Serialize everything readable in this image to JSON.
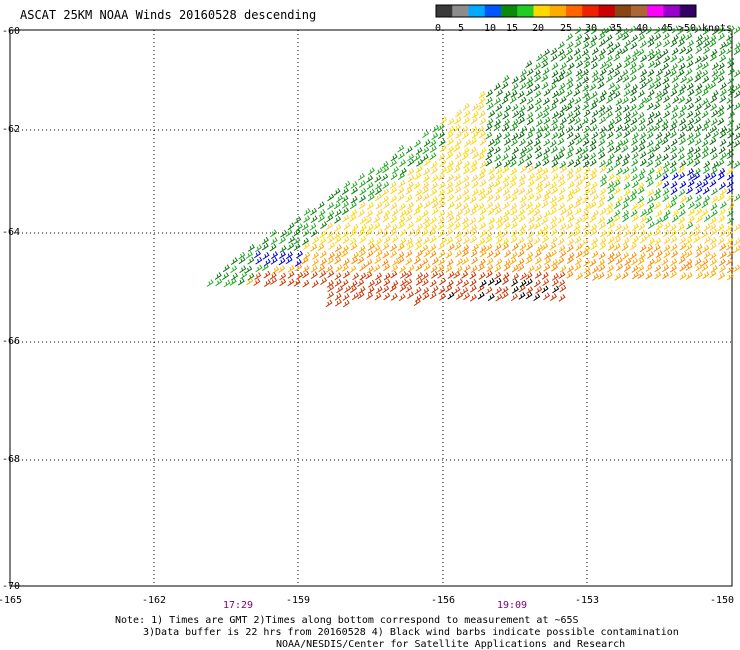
{
  "title": "ASCAT 25KM NOAA Winds 20160528 descending",
  "color_scale": {
    "labels": [
      "0",
      "5",
      "10",
      "15",
      "20",
      "25",
      "30",
      "35",
      "40",
      "45",
      ">50 knots"
    ],
    "colors": [
      "#3a3a3a",
      "#8c8c8c",
      "#00aaff",
      "#0055ff",
      "#0a8a0a",
      "#22cc22",
      "#ffd800",
      "#ffaa00",
      "#ff6600",
      "#ee2200",
      "#cc0000",
      "#8b4513",
      "#aa6633",
      "#ff00ff",
      "#9900cc",
      "#330066"
    ]
  },
  "map": {
    "lat_labels": [
      "-60",
      "-62",
      "-64",
      "-66",
      "-68",
      "-70"
    ],
    "lon_labels": [
      "-165",
      "-162",
      "-159",
      "-156",
      "-153",
      "-150"
    ],
    "time_labels": [
      {
        "text": "17:29",
        "lon": -160.5
      },
      {
        "text": "19:09",
        "lon": -154.6
      }
    ]
  },
  "notes": {
    "line1": "Note: 1) Times are GMT 2)Times along bottom correspond to measurement at ~65S",
    "line2": "3)Data buffer is 22 hrs from 20160528 4) Black wind barbs indicate possible contamination",
    "line3": "NOAA/NESDIS/Center for Satellite Applications and Research"
  }
}
